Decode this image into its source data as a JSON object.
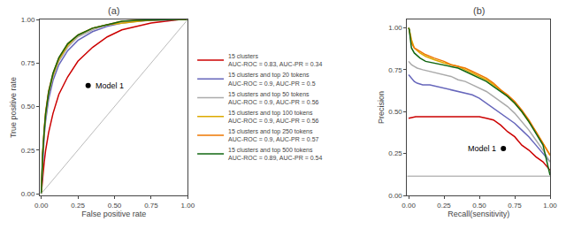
{
  "chart_data": [
    {
      "type": "line",
      "title": "(a)",
      "x_label": "False positive rate",
      "y_label": "True positive rate",
      "xlim": [
        -0.01,
        1.0
      ],
      "ylim": [
        -0.01,
        1.0
      ],
      "xticks": [
        {
          "value": 0.0,
          "label": "0.00"
        },
        0.25,
        {
          "value": 0.5,
          "label": "0.50"
        },
        0.75,
        {
          "value": 1.0,
          "label": "1.00"
        }
      ],
      "yticks": [
        {
          "value": 0.0,
          "label": "0.00"
        },
        0.25,
        {
          "value": 0.5,
          "label": "0.50"
        },
        0.75,
        {
          "value": 1.0,
          "label": "1.00"
        }
      ],
      "grid": false,
      "series": [
        {
          "name": "15 clusters\nAUC-ROC = 0.83, AUC-PR = 0.34",
          "color": "#cc0000",
          "x": [
            0,
            0.005,
            0.01,
            0.02,
            0.03,
            0.05,
            0.08,
            0.12,
            0.18,
            0.25,
            0.35,
            0.45,
            0.55,
            0.65,
            0.75,
            0.85,
            0.95,
            1.0
          ],
          "values": [
            0,
            0.05,
            0.1,
            0.18,
            0.25,
            0.35,
            0.46,
            0.57,
            0.67,
            0.76,
            0.84,
            0.9,
            0.94,
            0.96,
            0.98,
            0.99,
            1.0,
            1.0
          ]
        },
        {
          "name": "15 clusters and top 20 tokens\nAUC-ROC = 0.9, AUC-PR = 0.5",
          "color": "#6666bb",
          "x": [
            0,
            0.005,
            0.01,
            0.02,
            0.03,
            0.05,
            0.08,
            0.12,
            0.18,
            0.25,
            0.35,
            0.45,
            0.55,
            0.65,
            0.75,
            0.85,
            0.95,
            1.0
          ],
          "values": [
            0,
            0.1,
            0.2,
            0.33,
            0.42,
            0.54,
            0.65,
            0.74,
            0.82,
            0.88,
            0.93,
            0.96,
            0.98,
            0.99,
            0.995,
            0.998,
            1.0,
            1.0
          ]
        },
        {
          "name": "15 clusters and top 50 tokens\nAUC-ROC = 0.9, AUC-PR = 0.56",
          "color": "#aaaaaa",
          "x": [
            0,
            0.005,
            0.01,
            0.02,
            0.03,
            0.05,
            0.08,
            0.12,
            0.18,
            0.25,
            0.35,
            0.45,
            0.55,
            0.65,
            0.75,
            0.85,
            0.95,
            1.0
          ],
          "values": [
            0,
            0.12,
            0.22,
            0.35,
            0.44,
            0.57,
            0.67,
            0.76,
            0.84,
            0.9,
            0.94,
            0.97,
            0.98,
            0.99,
            0.997,
            0.999,
            1.0,
            1.0
          ]
        },
        {
          "name": "15 clusters and top 100 tokens\nAUC-ROC = 0.9, AUC-PR = 0.56",
          "color": "#ddaa00",
          "x": [
            0,
            0.005,
            0.01,
            0.02,
            0.03,
            0.05,
            0.08,
            0.12,
            0.18,
            0.25,
            0.35,
            0.45,
            0.55,
            0.65,
            0.75,
            0.85,
            0.95,
            1.0
          ],
          "values": [
            0,
            0.13,
            0.23,
            0.36,
            0.46,
            0.58,
            0.68,
            0.77,
            0.85,
            0.91,
            0.95,
            0.97,
            0.98,
            0.99,
            0.997,
            0.999,
            1.0,
            1.0
          ]
        },
        {
          "name": "15 clusters and top 250 tokens\nAUC-ROC = 0.9, AUC-PR = 0.57",
          "color": "#ee7700",
          "x": [
            0,
            0.005,
            0.01,
            0.02,
            0.03,
            0.05,
            0.08,
            0.12,
            0.18,
            0.25,
            0.35,
            0.45,
            0.55,
            0.65,
            0.75,
            0.85,
            0.95,
            1.0
          ],
          "values": [
            0,
            0.14,
            0.24,
            0.37,
            0.47,
            0.59,
            0.69,
            0.78,
            0.86,
            0.91,
            0.95,
            0.97,
            0.99,
            0.995,
            0.998,
            0.999,
            1.0,
            1.0
          ]
        },
        {
          "name": "15 clusters and top 500 tokens\nAUC-ROC = 0.89, AUC-PR = 0.54",
          "color": "#116611",
          "x": [
            0,
            0.005,
            0.01,
            0.02,
            0.03,
            0.05,
            0.08,
            0.12,
            0.18,
            0.25,
            0.35,
            0.45,
            0.55,
            0.65,
            0.75,
            0.85,
            0.95,
            1.0
          ],
          "values": [
            0,
            0.13,
            0.23,
            0.36,
            0.46,
            0.58,
            0.69,
            0.78,
            0.86,
            0.91,
            0.95,
            0.97,
            0.99,
            0.995,
            0.998,
            0.999,
            1.0,
            1.0
          ]
        },
        {
          "color": "#bbbbbb",
          "x": [
            0,
            1
          ],
          "values": [
            0,
            1
          ]
        }
      ],
      "annotations": [
        {
          "text": "Model 1",
          "x": 0.32,
          "y": 0.62,
          "color": "#000000"
        }
      ]
    },
    {
      "type": "line",
      "title": "(b)",
      "x_label": "Recall(sensitivity)",
      "y_label": "Precision",
      "xlim": [
        -0.01,
        1.0
      ],
      "ylim": [
        0.0,
        1.05
      ],
      "xticks": [
        {
          "value": 0.0,
          "label": "0.00"
        },
        0.25,
        {
          "value": 0.5,
          "label": "0.50"
        },
        0.75,
        {
          "value": 1.0,
          "label": "1.00"
        }
      ],
      "yticks": [
        {
          "value": 0.0,
          "label": "0.00"
        },
        0.25,
        {
          "value": 0.5,
          "label": "0.50"
        },
        0.75,
        {
          "value": 1.0,
          "label": "1.00"
        }
      ],
      "grid": false,
      "series": [
        {
          "name": "15 clusters\nAUC-ROC = 0.83, AUC-PR = 0.34",
          "color": "#cc0000",
          "x": [
            0.0,
            0.05,
            0.1,
            0.15,
            0.2,
            0.25,
            0.3,
            0.35,
            0.4,
            0.45,
            0.5,
            0.55,
            0.6,
            0.65,
            0.7,
            0.75,
            0.8,
            0.85,
            0.9,
            0.95,
            1.0
          ],
          "values": [
            0.46,
            0.47,
            0.47,
            0.47,
            0.47,
            0.47,
            0.47,
            0.47,
            0.47,
            0.47,
            0.47,
            0.46,
            0.45,
            0.42,
            0.38,
            0.35,
            0.3,
            0.27,
            0.23,
            0.2,
            0.15
          ]
        },
        {
          "name": "15 clusters and top 20 tokens\nAUC-ROC = 0.9, AUC-PR = 0.5",
          "color": "#6666bb",
          "x": [
            0.0,
            0.01,
            0.02,
            0.04,
            0.06,
            0.1,
            0.15,
            0.2,
            0.25,
            0.3,
            0.35,
            0.4,
            0.45,
            0.5,
            0.55,
            0.6,
            0.65,
            0.7,
            0.75,
            0.8,
            0.85,
            0.9,
            0.95,
            1.0
          ],
          "values": [
            0.72,
            0.71,
            0.7,
            0.68,
            0.67,
            0.66,
            0.66,
            0.65,
            0.64,
            0.63,
            0.62,
            0.61,
            0.6,
            0.58,
            0.55,
            0.52,
            0.49,
            0.46,
            0.43,
            0.39,
            0.35,
            0.3,
            0.25,
            0.2
          ]
        },
        {
          "name": "15 clusters and top 50 tokens\nAUC-ROC = 0.9, AUC-PR = 0.56",
          "color": "#aaaaaa",
          "x": [
            0.0,
            0.01,
            0.02,
            0.04,
            0.06,
            0.1,
            0.15,
            0.2,
            0.25,
            0.3,
            0.35,
            0.4,
            0.45,
            0.5,
            0.55,
            0.6,
            0.65,
            0.7,
            0.75,
            0.8,
            0.85,
            0.9,
            0.95,
            1.0
          ],
          "values": [
            0.8,
            0.79,
            0.78,
            0.77,
            0.76,
            0.75,
            0.74,
            0.73,
            0.72,
            0.71,
            0.69,
            0.68,
            0.66,
            0.64,
            0.62,
            0.59,
            0.56,
            0.53,
            0.49,
            0.44,
            0.39,
            0.33,
            0.27,
            0.2
          ]
        },
        {
          "name": "15 clusters and top 100 tokens\nAUC-ROC = 0.9, AUC-PR = 0.56",
          "color": "#ddaa00",
          "x": [
            0.0,
            0.005,
            0.01,
            0.02,
            0.04,
            0.08,
            0.12,
            0.18,
            0.25,
            0.3,
            0.35,
            0.4,
            0.45,
            0.5,
            0.55,
            0.6,
            0.65,
            0.7,
            0.75,
            0.8,
            0.85,
            0.9,
            0.95,
            1.0
          ],
          "values": [
            1.0,
            0.99,
            0.97,
            0.93,
            0.88,
            0.85,
            0.83,
            0.81,
            0.79,
            0.78,
            0.77,
            0.75,
            0.73,
            0.71,
            0.69,
            0.66,
            0.63,
            0.59,
            0.55,
            0.5,
            0.44,
            0.38,
            0.31,
            0.24
          ]
        },
        {
          "name": "15 clusters and top 250 tokens\nAUC-ROC = 0.9, AUC-PR = 0.57",
          "color": "#ee7700",
          "x": [
            0.0,
            0.005,
            0.01,
            0.02,
            0.04,
            0.08,
            0.12,
            0.18,
            0.25,
            0.3,
            0.35,
            0.4,
            0.45,
            0.5,
            0.55,
            0.6,
            0.65,
            0.7,
            0.75,
            0.8,
            0.85,
            0.9,
            0.95,
            1.0
          ],
          "values": [
            1.0,
            0.99,
            0.96,
            0.91,
            0.88,
            0.86,
            0.84,
            0.82,
            0.8,
            0.78,
            0.77,
            0.76,
            0.74,
            0.72,
            0.7,
            0.67,
            0.63,
            0.6,
            0.56,
            0.51,
            0.45,
            0.38,
            0.31,
            0.24
          ]
        },
        {
          "name": "15 clusters and top 500 tokens\nAUC-ROC = 0.89, AUC-PR = 0.54",
          "color": "#116611",
          "x": [
            0.0,
            0.005,
            0.01,
            0.02,
            0.04,
            0.08,
            0.12,
            0.18,
            0.25,
            0.3,
            0.35,
            0.4,
            0.45,
            0.5,
            0.55,
            0.6,
            0.65,
            0.7,
            0.75,
            0.8,
            0.85,
            0.9,
            0.95,
            1.0
          ],
          "values": [
            1.0,
            0.99,
            0.95,
            0.88,
            0.85,
            0.82,
            0.8,
            0.79,
            0.78,
            0.77,
            0.76,
            0.74,
            0.72,
            0.7,
            0.68,
            0.65,
            0.62,
            0.59,
            0.55,
            0.5,
            0.44,
            0.37,
            0.3,
            0.12
          ]
        }
      ],
      "hline": {
        "y": 0.115,
        "color": "#999999"
      },
      "annotations": [
        {
          "text": "Model 1",
          "x": 0.67,
          "y": 0.28,
          "color": "#000000"
        }
      ]
    }
  ]
}
